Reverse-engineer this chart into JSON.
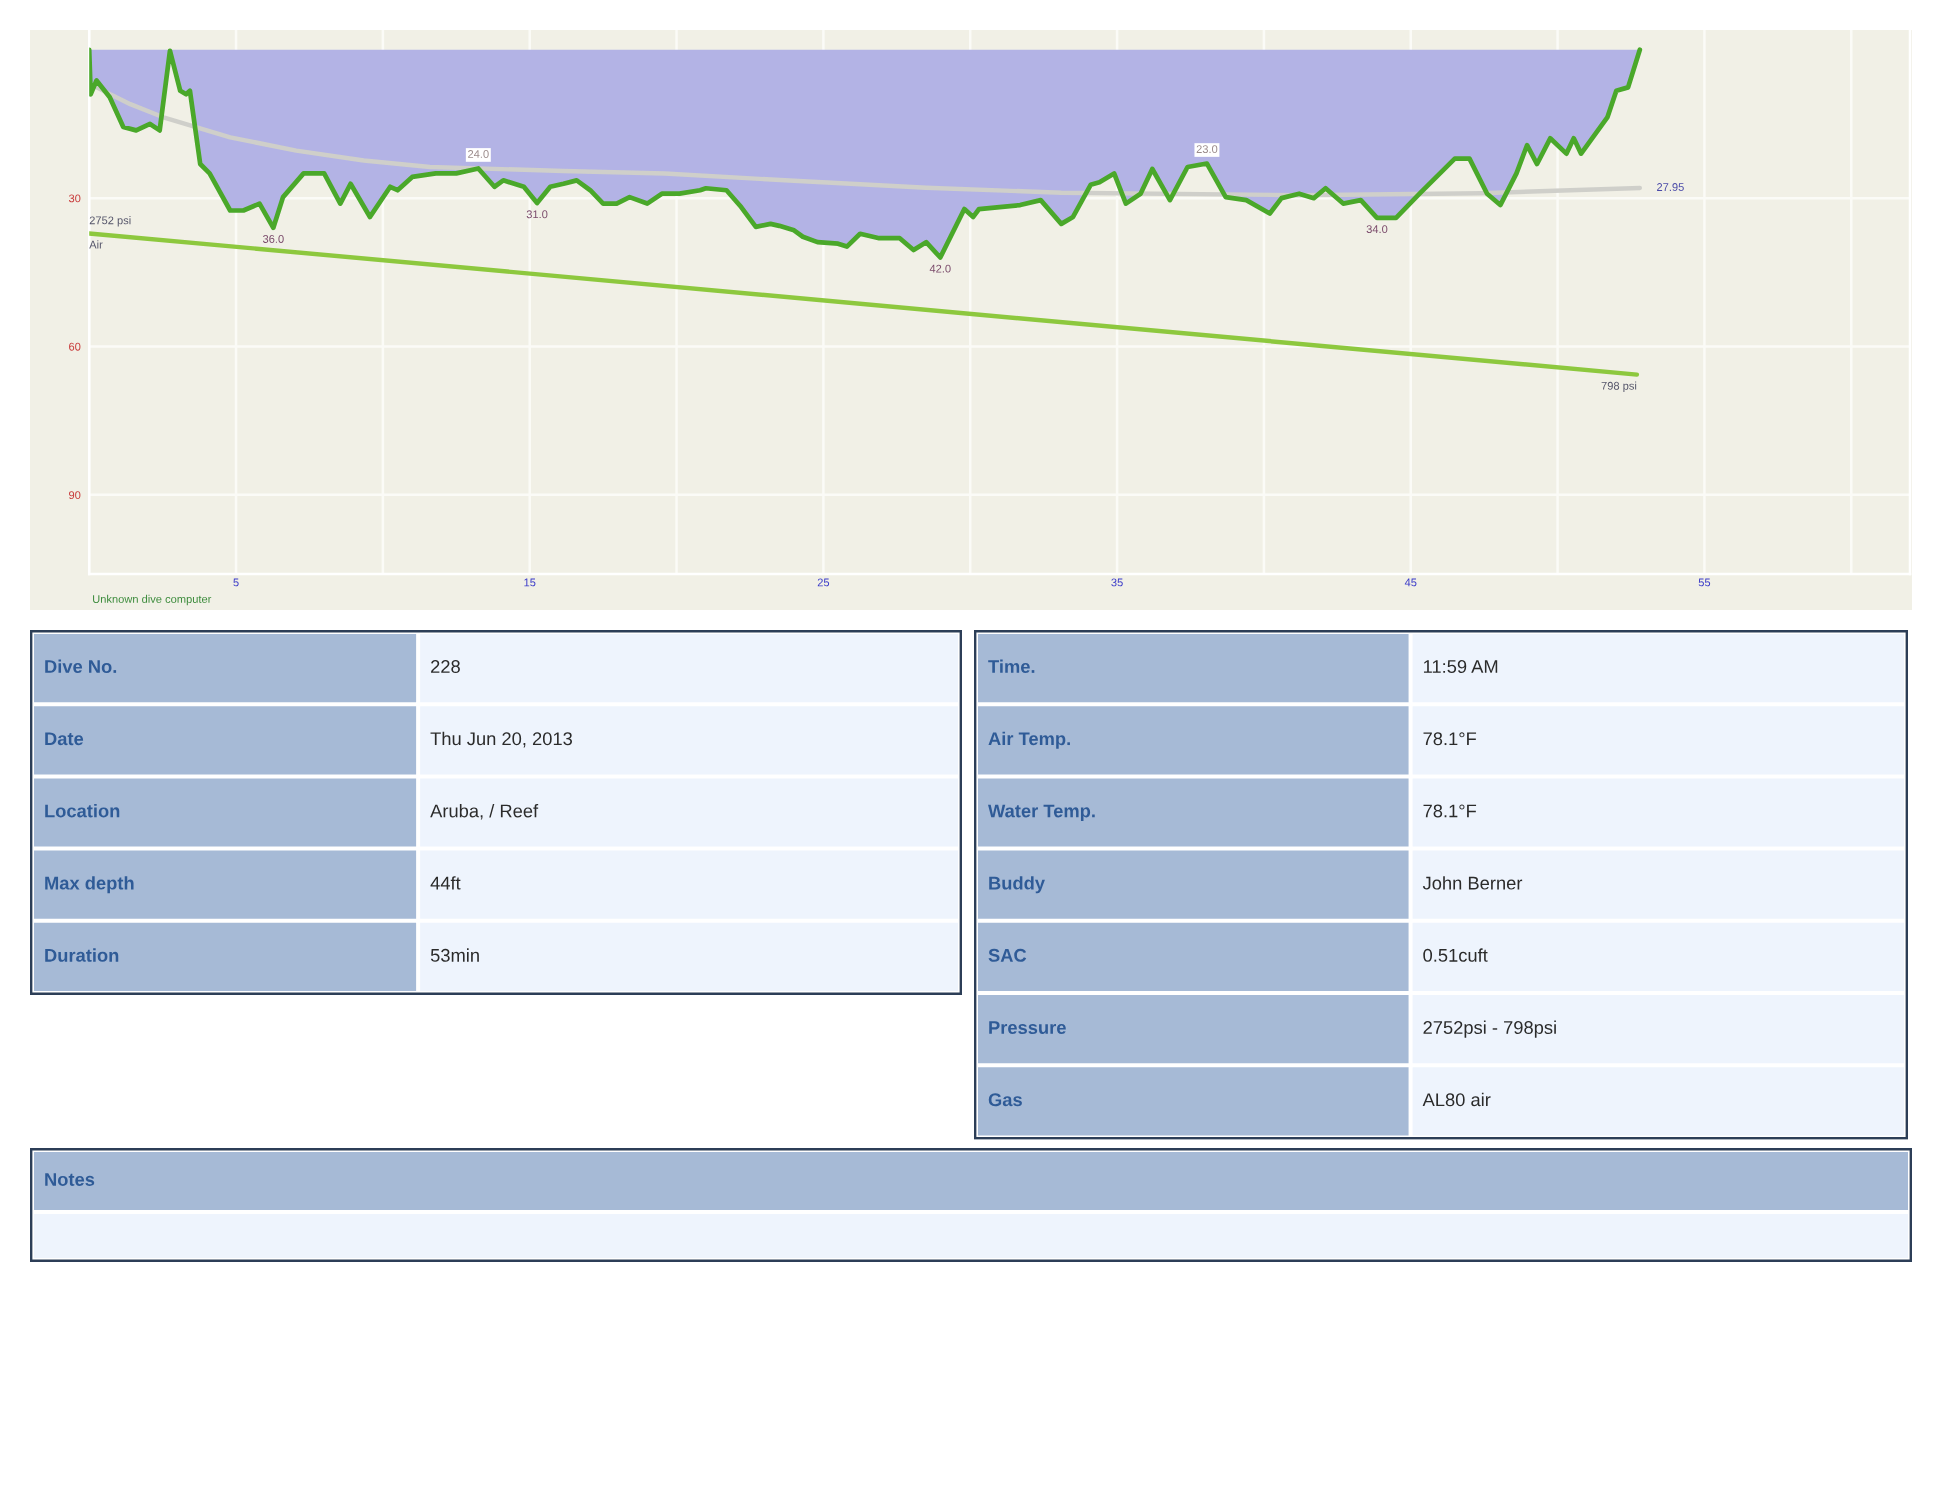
{
  "chart_data": [
    {
      "type": "line",
      "x": [
        0,
        0.05,
        0.25,
        0.7,
        1.16,
        1.6,
        2.07,
        2.4,
        2.75,
        3.1,
        3.3,
        3.43,
        3.78,
        4.1,
        4.8,
        5.25,
        5.8,
        6.27,
        6.6,
        7.3,
        8.0,
        8.55,
        8.9,
        9.56,
        10.25,
        10.5,
        11.0,
        11.8,
        12.5,
        13.25,
        13.8,
        14.1,
        14.8,
        15.25,
        15.7,
        16.15,
        16.6,
        17.06,
        17.5,
        17.96,
        18.4,
        19.0,
        19.5,
        20.1,
        20.8,
        21.0,
        21.7,
        22.2,
        22.7,
        23.2,
        23.5,
        24.0,
        24.3,
        24.8,
        25.5,
        25.8,
        26.25,
        26.9,
        27.6,
        28.07,
        28.5,
        28.98,
        29.8,
        30.1,
        30.3,
        31.0,
        31.7,
        32.4,
        33.1,
        33.5,
        34.1,
        34.4,
        34.9,
        35.3,
        35.8,
        36.2,
        36.8,
        37.4,
        38.06,
        38.7,
        39.4,
        40.2,
        40.6,
        41.2,
        41.7,
        42.1,
        42.7,
        43.3,
        43.85,
        44.5,
        45.3,
        46.5,
        47.0,
        47.6,
        48.05,
        48.6,
        48.96,
        49.3,
        49.75,
        50.3,
        50.55,
        50.8,
        51.2,
        51.7,
        52.0,
        52.4,
        52.8
      ],
      "series": [
        {
          "type": "area",
          "color": "#b3b3e5",
          "values": [
            0,
            9.0,
            6.2,
            9.6,
            15.6,
            16.3,
            15.0,
            16.3,
            0.2,
            8.3,
            9.0,
            8.3,
            23.1,
            25.0,
            32.5,
            32.5,
            31.1,
            36.0,
            29.8,
            25.0,
            25.0,
            31.1,
            27.1,
            33.8,
            27.7,
            28.4,
            25.7,
            25.0,
            25.0,
            24.0,
            27.7,
            26.4,
            27.7,
            31.0,
            27.7,
            27.1,
            26.4,
            28.4,
            31.1,
            31.1,
            29.8,
            31.1,
            29.1,
            29.1,
            28.4,
            28.0,
            28.4,
            31.8,
            35.8,
            35.2,
            35.6,
            36.5,
            37.8,
            38.9,
            39.2,
            39.8,
            37.2,
            38.1,
            38.1,
            40.5,
            38.9,
            42.0,
            32.2,
            33.8,
            32.2,
            31.8,
            31.4,
            30.4,
            35.2,
            33.8,
            27.3,
            26.8,
            25.0,
            31.1,
            29.1,
            24.1,
            30.4,
            23.7,
            23.0,
            29.8,
            30.4,
            33.1,
            30.0,
            29.1,
            30.0,
            28.0,
            31.1,
            30.4,
            34.0,
            34.0,
            29.1,
            22.0,
            22.0,
            29.1,
            31.4,
            25.0,
            19.3,
            23.1,
            17.9,
            21.0,
            17.9,
            21.0,
            17.7,
            13.6,
            8.3,
            7.6,
            0
          ]
        },
        {
          "type": "line",
          "color": "#cfcfca",
          "x": [
            0.25,
            1.4,
            2.5,
            4.8,
            7.05,
            9.35,
            11.6,
            16.15,
            19.6,
            24.0,
            28.5,
            33.1,
            41.2,
            47.4,
            52.8
          ],
          "values": [
            7.6,
            11.0,
            13.6,
            17.7,
            20.4,
            22.4,
            23.7,
            24.5,
            25.0,
            26.5,
            27.9,
            28.9,
            29.4,
            29.0,
            27.95
          ],
          "value_labels": [
            null,
            null,
            null,
            null,
            null,
            null,
            null,
            null,
            null,
            null,
            null,
            null,
            null,
            null,
            "27.95"
          ]
        },
        {
          "type": "line",
          "name": "Air",
          "axis": "y2",
          "color": "#8dc83e",
          "x": [
            0,
            52.7
          ],
          "values": [
            2752,
            798
          ],
          "value_labels": [
            "2752 psi",
            "798 psi"
          ]
        }
      ],
      "xlim": [
        0,
        62
      ],
      "xticks": [
        {
          "value": 0,
          "label": null
        },
        5,
        {
          "value": 10,
          "label": null
        },
        15,
        {
          "value": 20,
          "label": null
        },
        25,
        {
          "value": 30,
          "label": null
        },
        35,
        {
          "value": 40,
          "label": null
        },
        45,
        {
          "value": 50,
          "label": null
        },
        55,
        {
          "value": 60,
          "label": null
        }
      ],
      "ylim": [
        106,
        -4
      ],
      "yticks": [
        30,
        60,
        90
      ],
      "y2lim": [
        -1961,
        5567
      ],
      "grid": true,
      "annotations": [
        "Unknown dive computer",
        {
          "text": "36.0",
          "x": 6.27,
          "y": 36.0
        },
        {
          "text": "24.0",
          "x": 13.25,
          "y": 24.0
        },
        {
          "text": "31.0",
          "x": 15.25,
          "y": 31.0
        },
        {
          "text": "42.0",
          "x": 28.98,
          "y": 42.0
        },
        {
          "text": "23.0",
          "x": 38.06,
          "y": 23.0
        },
        {
          "text": "34.0",
          "x": 43.85,
          "y": 34.0
        }
      ]
    },
    {
      "type": "other",
      "categories": [
        "Dive No.",
        "Date",
        "Location",
        "Max depth",
        "Duration"
      ],
      "annotations": [
        "228",
        "Thu Jun 20, 2013",
        "Aruba, / Reef",
        "44ft",
        "53min"
      ]
    },
    {
      "type": "other",
      "categories": [
        "Time.",
        "Air Temp.",
        "Water Temp.",
        "Buddy",
        "SAC",
        "Pressure",
        "Gas"
      ],
      "annotations": [
        "11:59 AM",
        "78.1°F",
        "78.1°F",
        "John Berner",
        "0.51cuft",
        "2752psi - 798psi",
        "AL80 air"
      ]
    },
    {
      "type": "other",
      "title": "Notes"
    }
  ]
}
